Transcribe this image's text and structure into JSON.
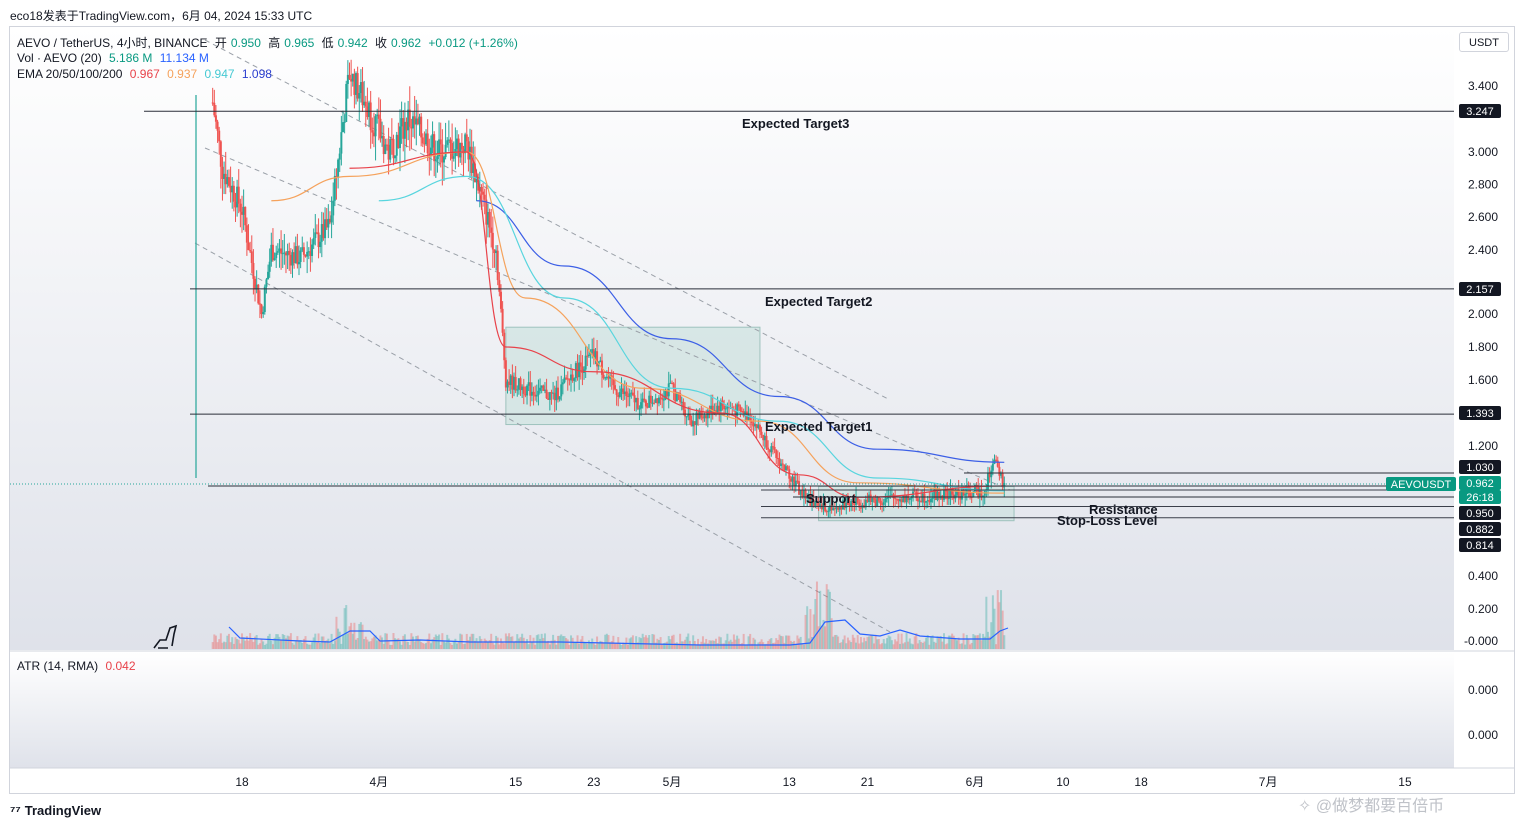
{
  "header": {
    "source": "eco18发表于TradingView.com，6月 04, 2024 15:33 UTC"
  },
  "legend": {
    "symbol": "AEVO / TetherUS, 4小时, BINANCE",
    "ohlc": [
      {
        "label": "开",
        "value": "0.950"
      },
      {
        "label": "高",
        "value": "0.965"
      },
      {
        "label": "低",
        "value": "0.942"
      },
      {
        "label": "收",
        "value": "0.962"
      }
    ],
    "change": "+0.012 (+1.26%)",
    "vol_label": "Vol · AEVO (20)",
    "vol_values": [
      "5.186 M",
      "11.134 M"
    ],
    "ema_label": "EMA 20/50/100/200",
    "ema_values": [
      "0.967",
      "0.937",
      "0.947",
      "1.098"
    ]
  },
  "currency_button": "USDT",
  "atr": {
    "label": "ATR (14, RMA)",
    "value": "0.042",
    "axis": [
      "0.000",
      "0.000"
    ]
  },
  "colors": {
    "up": "#26a69a",
    "down": "#ef5350",
    "ema20": "#e8424a",
    "ema50": "#f5a25c",
    "ema100": "#58d5de",
    "ema200": "#3c5fe6",
    "volume_ma": "#2962ff",
    "zone_fill": "#cfe3e0",
    "zone_stroke": "#9ec2bd"
  },
  "chart_data": {
    "type": "candlestick",
    "y_axis_ticks": [
      "3.400",
      "3.000",
      "2.800",
      "2.600",
      "2.400",
      "2.000",
      "1.800",
      "1.600",
      "1.200",
      "0.400",
      "0.200",
      "-0.000"
    ],
    "x_axis_ticks": [
      "18",
      "4月",
      "15",
      "23",
      "5月",
      "13",
      "21",
      "6月",
      "10",
      "18",
      "7月",
      "15"
    ],
    "price_badges": [
      {
        "label": "3.247",
        "value": 3.247,
        "style": "dark"
      },
      {
        "label": "2.157",
        "value": 2.157,
        "style": "dark"
      },
      {
        "label": "1.393",
        "value": 1.393,
        "style": "dark"
      },
      {
        "label": "1.030",
        "value": 1.03,
        "style": "dark"
      },
      {
        "label": "0.962",
        "value": 0.962,
        "style": "green"
      },
      {
        "label": "26:18",
        "value": 0.923,
        "style": "green"
      },
      {
        "label": "0.950",
        "value": 0.95,
        "style": "dark"
      },
      {
        "label": "0.882",
        "value": 0.882,
        "style": "dark"
      },
      {
        "label": "0.814",
        "value": 0.814,
        "style": "dark"
      }
    ],
    "symbol_badge": "AEVOUSDT",
    "levels": [
      {
        "label": "Expected Target3",
        "value": 3.247
      },
      {
        "label": "Expected Target2",
        "value": 2.157
      },
      {
        "label": "Expected Target1",
        "value": 1.393
      },
      {
        "label": "Support",
        "value": 0.95
      },
      {
        "label": "Resistance",
        "value": 0.882
      },
      {
        "label": "Stop-Loss Level",
        "value": 0.814
      }
    ],
    "price_path": [
      [
        "Mar 15",
        3.3
      ],
      [
        "Mar 16",
        2.9
      ],
      [
        "Mar 18",
        2.65
      ],
      [
        "Mar 20",
        2.0
      ],
      [
        "Mar 21",
        2.4
      ],
      [
        "Mar 24",
        2.35
      ],
      [
        "Mar 27",
        2.55
      ],
      [
        "Mar 29",
        3.5
      ],
      [
        "Mar 31",
        3.25
      ],
      [
        "Apr 2",
        3.0
      ],
      [
        "Apr 4",
        3.2
      ],
      [
        "Apr 7",
        3.0
      ],
      [
        "Apr 10",
        3.05
      ],
      [
        "Apr 13",
        2.4
      ],
      [
        "Apr 14",
        1.6
      ],
      [
        "Apr 16",
        1.55
      ],
      [
        "Apr 19",
        1.5
      ],
      [
        "Apr 21",
        1.65
      ],
      [
        "Apr 23",
        1.75
      ],
      [
        "Apr 25",
        1.55
      ],
      [
        "Apr 28",
        1.45
      ],
      [
        "May 1",
        1.55
      ],
      [
        "May 3",
        1.35
      ],
      [
        "May 6",
        1.45
      ],
      [
        "May 9",
        1.38
      ],
      [
        "May 12",
        1.1
      ],
      [
        "May 14",
        0.95
      ],
      [
        "May 16",
        0.87
      ],
      [
        "May 20",
        0.9
      ],
      [
        "May 25",
        0.92
      ],
      [
        "May 30",
        0.93
      ],
      [
        "Jun 2",
        0.95
      ],
      [
        "Jun 3",
        1.1
      ],
      [
        "Jun 4",
        0.962
      ]
    ],
    "ema20": [
      [
        "Mar 29",
        2.9
      ],
      [
        "Apr 10",
        3.0
      ],
      [
        "Apr 14",
        1.8
      ],
      [
        "Apr 23",
        1.65
      ],
      [
        "May 6",
        1.4
      ],
      [
        "May 14",
        1.02
      ],
      [
        "May 20",
        0.92
      ],
      [
        "Jun 4",
        0.967
      ]
    ],
    "ema50": [
      [
        "Mar 21",
        2.7
      ],
      [
        "Mar 29",
        2.85
      ],
      [
        "Apr 10",
        3.0
      ],
      [
        "Apr 16",
        2.1
      ],
      [
        "Apr 28",
        1.55
      ],
      [
        "May 10",
        1.35
      ],
      [
        "May 20",
        0.98
      ],
      [
        "Jun 4",
        0.937
      ]
    ],
    "ema100": [
      [
        "Apr 1",
        2.7
      ],
      [
        "Apr 10",
        2.85
      ],
      [
        "Apr 20",
        2.1
      ],
      [
        "May 1",
        1.55
      ],
      [
        "May 12",
        1.35
      ],
      [
        "May 22",
        1.0
      ],
      [
        "Jun 4",
        0.947
      ]
    ],
    "ema200": [
      [
        "Apr 11",
        2.7
      ],
      [
        "Apr 20",
        2.3
      ],
      [
        "May 1",
        1.85
      ],
      [
        "May 12",
        1.5
      ],
      [
        "May 22",
        1.18
      ],
      [
        "Jun 4",
        1.098
      ]
    ],
    "zones": [
      {
        "from": "Apr 14",
        "to": "May 10",
        "top": 1.92,
        "bottom": 1.33
      },
      {
        "from": "May 16",
        "to": "Jun 5",
        "top": 0.965,
        "bottom": 0.795
      }
    ]
  }
}
